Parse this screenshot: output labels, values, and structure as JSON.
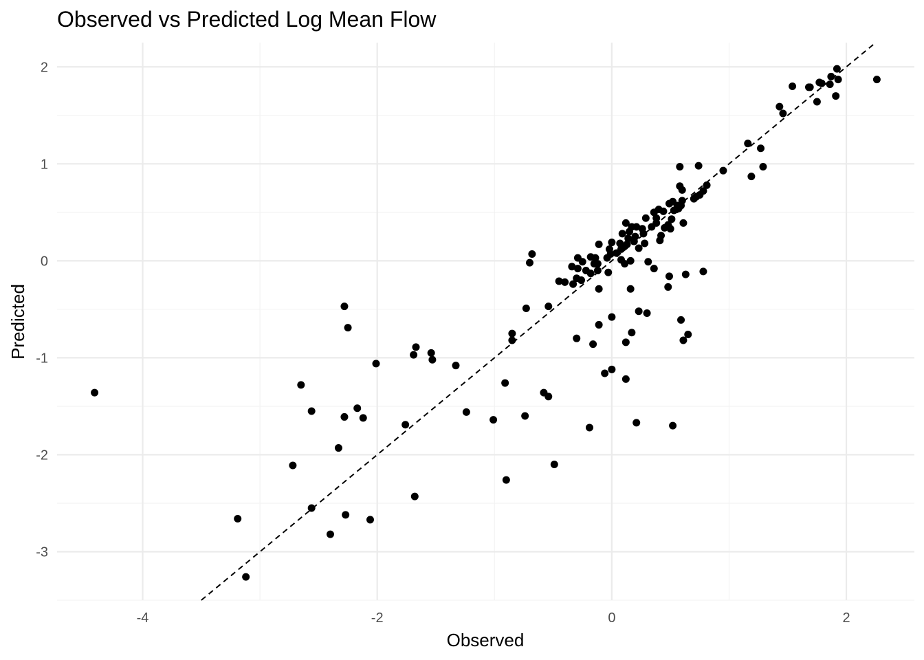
{
  "chart_data": {
    "type": "scatter",
    "title": "Observed vs Predicted Log Mean Flow",
    "xlabel": "Observed",
    "ylabel": "Predicted",
    "xlim": [
      -4.73,
      2.58
    ],
    "ylim": [
      -3.5,
      2.25
    ],
    "x_ticks": [
      -4,
      -2,
      0,
      2
    ],
    "y_ticks": [
      -3,
      -2,
      -1,
      0,
      1,
      2
    ],
    "x_tick_labels": [
      "-4",
      "-2",
      "0",
      "2"
    ],
    "y_tick_labels": [
      "-3",
      "-2",
      "-1",
      "0",
      "1",
      "2"
    ],
    "grid": true,
    "reference_line": {
      "slope": 1,
      "intercept": 0,
      "style": "dashed",
      "color": "#000000"
    },
    "point_color": "#000000",
    "points": [
      [
        -4.41,
        -1.36
      ],
      [
        -3.19,
        -2.66
      ],
      [
        -3.12,
        -3.26
      ],
      [
        -2.72,
        -2.11
      ],
      [
        -2.65,
        -1.28
      ],
      [
        -2.56,
        -1.55
      ],
      [
        -2.56,
        -2.55
      ],
      [
        -2.4,
        -2.82
      ],
      [
        -2.33,
        -1.93
      ],
      [
        -2.28,
        -0.47
      ],
      [
        -2.28,
        -1.61
      ],
      [
        -2.27,
        -2.62
      ],
      [
        -2.25,
        -0.69
      ],
      [
        -2.17,
        -1.52
      ],
      [
        -2.12,
        -1.62
      ],
      [
        -2.06,
        -2.67
      ],
      [
        -2.01,
        -1.06
      ],
      [
        -1.76,
        -1.69
      ],
      [
        -1.69,
        -0.97
      ],
      [
        -1.68,
        -2.43
      ],
      [
        -1.67,
        -0.89
      ],
      [
        -1.54,
        -0.95
      ],
      [
        -1.53,
        -1.02
      ],
      [
        -1.33,
        -1.08
      ],
      [
        -1.24,
        -1.56
      ],
      [
        -1.01,
        -1.64
      ],
      [
        -0.91,
        -1.26
      ],
      [
        -0.9,
        -2.26
      ],
      [
        -0.85,
        -0.75
      ],
      [
        -0.85,
        -0.82
      ],
      [
        -0.74,
        -1.6
      ],
      [
        -0.73,
        -0.49
      ],
      [
        -0.7,
        -0.02
      ],
      [
        -0.68,
        0.07
      ],
      [
        -0.58,
        -1.36
      ],
      [
        -0.54,
        -0.47
      ],
      [
        -0.54,
        -1.4
      ],
      [
        -0.49,
        -2.1
      ],
      [
        -0.45,
        -0.21
      ],
      [
        -0.4,
        -0.22
      ],
      [
        -0.34,
        -0.06
      ],
      [
        -0.33,
        -0.24
      ],
      [
        -0.3,
        -0.8
      ],
      [
        -0.3,
        -0.18
      ],
      [
        -0.29,
        -0.08
      ],
      [
        -0.29,
        0.03
      ],
      [
        -0.26,
        -0.2
      ],
      [
        -0.25,
        -0.01
      ],
      [
        -0.22,
        -0.1
      ],
      [
        -0.19,
        -1.72
      ],
      [
        -0.18,
        0.04
      ],
      [
        -0.18,
        -0.13
      ],
      [
        -0.16,
        -0.86
      ],
      [
        -0.15,
        -0.03
      ],
      [
        -0.14,
        0.03
      ],
      [
        -0.12,
        -0.1
      ],
      [
        -0.12,
        -0.03
      ],
      [
        -0.11,
        -0.29
      ],
      [
        -0.11,
        0.17
      ],
      [
        -0.11,
        -0.66
      ],
      [
        -0.06,
        -1.16
      ],
      [
        -0.04,
        0.03
      ],
      [
        -0.03,
        -0.12
      ],
      [
        -0.02,
        0.12
      ],
      [
        -0.01,
        0.07
      ],
      [
        0.0,
        0.19
      ],
      [
        0.0,
        -0.58
      ],
      [
        0.0,
        -1.12
      ],
      [
        0.04,
        0.08
      ],
      [
        0.07,
        0.18
      ],
      [
        0.08,
        0.01
      ],
      [
        0.08,
        0.12
      ],
      [
        0.09,
        0.28
      ],
      [
        0.11,
        0.15
      ],
      [
        0.11,
        -0.03
      ],
      [
        0.12,
        0.39
      ],
      [
        0.12,
        -1.22
      ],
      [
        0.12,
        -0.84
      ],
      [
        0.13,
        0.17
      ],
      [
        0.14,
        0.23
      ],
      [
        0.15,
        0.3
      ],
      [
        0.16,
        -0.29
      ],
      [
        0.16,
        0.0
      ],
      [
        0.17,
        -0.74
      ],
      [
        0.17,
        0.35
      ],
      [
        0.19,
        0.2
      ],
      [
        0.2,
        0.25
      ],
      [
        0.21,
        -1.67
      ],
      [
        0.21,
        0.35
      ],
      [
        0.23,
        0.13
      ],
      [
        0.23,
        -0.52
      ],
      [
        0.26,
        0.33
      ],
      [
        0.27,
        0.28
      ],
      [
        0.28,
        0.18
      ],
      [
        0.29,
        0.44
      ],
      [
        0.3,
        -0.54
      ],
      [
        0.31,
        -0.01
      ],
      [
        0.34,
        0.35
      ],
      [
        0.36,
        0.5
      ],
      [
        0.36,
        -0.08
      ],
      [
        0.38,
        0.39
      ],
      [
        0.38,
        0.44
      ],
      [
        0.4,
        0.53
      ],
      [
        0.41,
        0.21
      ],
      [
        0.42,
        0.26
      ],
      [
        0.44,
        0.51
      ],
      [
        0.45,
        0.34
      ],
      [
        0.48,
        0.37
      ],
      [
        0.48,
        -0.27
      ],
      [
        0.49,
        -0.16
      ],
      [
        0.49,
        0.59
      ],
      [
        0.5,
        0.33
      ],
      [
        0.51,
        0.43
      ],
      [
        0.52,
        -1.7
      ],
      [
        0.52,
        0.61
      ],
      [
        0.53,
        0.52
      ],
      [
        0.55,
        0.53
      ],
      [
        0.56,
        0.57
      ],
      [
        0.57,
        0.54
      ],
      [
        0.58,
        0.97
      ],
      [
        0.58,
        0.77
      ],
      [
        0.59,
        -0.61
      ],
      [
        0.59,
        0.57
      ],
      [
        0.6,
        0.73
      ],
      [
        0.6,
        0.62
      ],
      [
        0.61,
        0.39
      ],
      [
        0.61,
        -0.82
      ],
      [
        0.63,
        -0.14
      ],
      [
        0.65,
        -0.76
      ],
      [
        0.7,
        0.64
      ],
      [
        0.72,
        0.66
      ],
      [
        0.74,
        0.98
      ],
      [
        0.75,
        0.68
      ],
      [
        0.78,
        -0.11
      ],
      [
        0.78,
        0.72
      ],
      [
        0.81,
        0.78
      ],
      [
        0.95,
        0.93
      ],
      [
        1.16,
        1.21
      ],
      [
        1.19,
        0.87
      ],
      [
        1.27,
        1.16
      ],
      [
        1.29,
        0.97
      ],
      [
        1.43,
        1.59
      ],
      [
        1.46,
        1.52
      ],
      [
        1.54,
        1.8
      ],
      [
        1.68,
        1.79
      ],
      [
        1.69,
        1.79
      ],
      [
        1.75,
        1.64
      ],
      [
        1.77,
        1.84
      ],
      [
        1.79,
        1.83
      ],
      [
        1.86,
        1.82
      ],
      [
        1.87,
        1.9
      ],
      [
        1.91,
        1.7
      ],
      [
        1.92,
        1.98
      ],
      [
        1.93,
        1.87
      ],
      [
        2.26,
        1.87
      ]
    ]
  }
}
